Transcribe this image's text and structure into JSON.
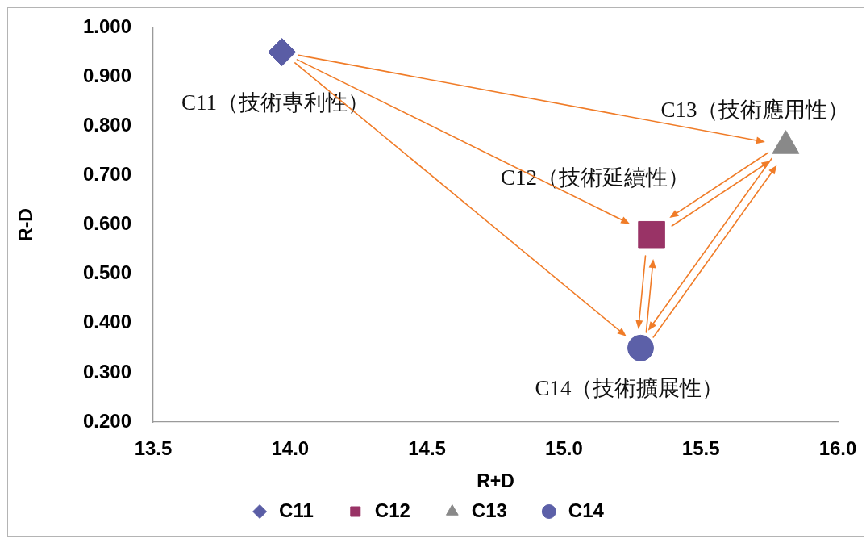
{
  "chart_data": {
    "type": "scatter",
    "xlabel": "R+D",
    "ylabel": "R-D",
    "series": [
      {
        "name": "C11",
        "color": "#5a5da5",
        "marker": "diamond",
        "x": [
          13.97
        ],
        "values": [
          0.95
        ]
      },
      {
        "name": "C12",
        "color": "#993366",
        "marker": "square",
        "x": [
          15.32
        ],
        "values": [
          0.58
        ]
      },
      {
        "name": "C13",
        "color": "#898989",
        "marker": "triangle",
        "x": [
          15.81
        ],
        "values": [
          0.76
        ]
      },
      {
        "name": "C14",
        "color": "#5c60a8",
        "marker": "circle",
        "x": [
          15.28
        ],
        "values": [
          0.35
        ]
      }
    ],
    "xlim": [
      13.5,
      16
    ],
    "xticks": [
      13.5,
      {
        "value": 14,
        "label": "14.0"
      },
      14.5,
      {
        "value": 15,
        "label": "15.0"
      },
      15.5,
      {
        "value": 16,
        "label": "16.0"
      }
    ],
    "ylim": [
      0.2,
      1
    ],
    "yticks": [
      {
        "value": 0.2,
        "label": "0.200"
      },
      {
        "value": 0.3,
        "label": "0.300"
      },
      {
        "value": 0.4,
        "label": "0.400"
      },
      {
        "value": 0.5,
        "label": "0.500"
      },
      {
        "value": 0.6,
        "label": "0.600"
      },
      {
        "value": 0.7,
        "label": "0.700"
      },
      {
        "value": 0.8,
        "label": "0.800"
      },
      {
        "value": 0.9,
        "label": "0.900"
      },
      {
        "value": 1,
        "label": "1.000"
      }
    ],
    "legend": "bottom",
    "annotations": [
      {
        "text": "C11（技術專利性）",
        "x": 13.97,
        "y": 0.95
      },
      {
        "text": "C12（技術延續性）",
        "x": 15.32,
        "y": 0.58
      },
      {
        "text": "C13（技術應用性）",
        "x": 15.81,
        "y": 0.76
      },
      {
        "text": "C14（技術擴展性）",
        "x": 15.28,
        "y": 0.35
      }
    ]
  }
}
